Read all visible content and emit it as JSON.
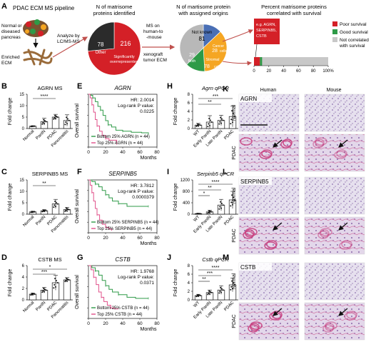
{
  "panels": {
    "A": "A",
    "B": "B",
    "C": "C",
    "D": "D",
    "E": "E",
    "F": "F",
    "G": "G",
    "H": "H",
    "I": "I",
    "J": "J",
    "K": "K",
    "L": "L",
    "M": "M"
  },
  "pipeline": {
    "title": "PDAC ECM MS pipeline",
    "tissue_line1": "Normal or",
    "tissue_line2": "diseased",
    "tissue_line3": "pancreas",
    "ecm_line1": "Enriched",
    "ecm_line2": "ECM",
    "analyze_line1": "Analyze by",
    "analyze_line2": "LC/MS-MS",
    "ms_line1": "MS on",
    "ms_line2": "human-to",
    "ms_line3": "-mouse",
    "ms_line4": "xenograft",
    "ms_line5": "tumor ECM"
  },
  "pie1": {
    "title_line1": "N of matrisome",
    "title_line2": "proteins identified",
    "other_value": "78",
    "other_label": "Other",
    "sig_value": "216",
    "sig_label1": "Significantly",
    "sig_label2": "overrepresented",
    "colors": {
      "other": "#2b2b2b",
      "sig": "#d42027"
    }
  },
  "pie2": {
    "title_line1": "N of martisome protein",
    "title_line2": "with assigned origins",
    "notknown_label": "Not known",
    "notknown_value": "81",
    "cancer_label1": "Cancer",
    "cancer_value": "28",
    "cancer_label2": "cells",
    "both_value": "29",
    "both_label": "Both",
    "stromal_label": "Stromal",
    "stromal_value": "78",
    "stromal_label2": "cells",
    "colors": {
      "notknown": "#b8b8b8",
      "cancer": "#4a6fb5",
      "both": "#2e9a47",
      "stromal": "#f5a623"
    }
  },
  "surv_bar": {
    "title_line1": "Percent matrisome proteins",
    "title_line2": "correlated with survival",
    "box_line1": "e.g. AGRN,",
    "box_line2": "SERPINB5,",
    "box_line3": "CSTB",
    "ticks": [
      "0",
      "20",
      "40",
      "60",
      "80",
      "100%"
    ],
    "poor_pct": 8,
    "good_pct": 3,
    "legend": {
      "poor": "Poor survival",
      "good": "Good survival",
      "not_line1": "Not correlated",
      "not_line2": "with survival"
    },
    "colors": {
      "poor": "#d42027",
      "good": "#2e9a47",
      "not": "#c8c8c8"
    }
  },
  "ms_bars": [
    {
      "panel": "B",
      "title": "AGRN MS",
      "ylabel": "Fold change",
      "ticks": [
        "0",
        "5",
        "10",
        "15"
      ],
      "ymax": 15,
      "categories": [
        "Normal",
        "PanIN",
        "PDAC",
        "Pancreatitis"
      ],
      "values": [
        1,
        3,
        5,
        3.5
      ],
      "errors": [
        0.2,
        1.5,
        1.2,
        2.5
      ],
      "sig": "****"
    },
    {
      "panel": "C",
      "title": "SERPINB5 MS",
      "ylabel": "Fold change",
      "ticks": [
        "0",
        "5",
        "10",
        "15"
      ],
      "ymax": 15,
      "categories": [
        "Normal",
        "PanIN",
        "PDAC",
        "Pancreatitis"
      ],
      "values": [
        1,
        1.5,
        4.5,
        2
      ],
      "errors": [
        0.3,
        0.5,
        2,
        1
      ],
      "sig": "**"
    },
    {
      "panel": "D",
      "title": "CSTB MS",
      "ylabel": "Fold change",
      "ticks": [
        "0",
        "2",
        "4",
        "6"
      ],
      "ymax": 6,
      "categories": [
        "Normal",
        "PanIN",
        "PDAC",
        "Pancreatitis"
      ],
      "values": [
        1,
        1.7,
        3,
        3.5
      ],
      "errors": [
        0.2,
        0.5,
        1.3,
        0.4
      ],
      "sig1": "***",
      "sig2": "*"
    }
  ],
  "km": [
    {
      "panel": "E",
      "gene": "AGRN",
      "hr": "HR: 2.0014",
      "logrank": "Log-rank P value:",
      "p": "0.0225",
      "legend_bottom": "Bottom 25% AGRN (n = 44)",
      "legend_top": "Top 25% AGRN (n = 44)",
      "ylabel": "Overall survival",
      "xlabel": "Months",
      "xticks": [
        "0",
        "20",
        "40",
        "60",
        "80"
      ],
      "yticks": [
        "0.0",
        "0.2",
        "0.4",
        "0.6",
        "0.8",
        "1.0"
      ],
      "bottom": [
        [
          0,
          1
        ],
        [
          3,
          0.98
        ],
        [
          5,
          0.93
        ],
        [
          8,
          0.86
        ],
        [
          11,
          0.77
        ],
        [
          14,
          0.7
        ],
        [
          17,
          0.6
        ],
        [
          20,
          0.5
        ],
        [
          23,
          0.42
        ],
        [
          27,
          0.38
        ],
        [
          32,
          0.32
        ],
        [
          40,
          0.3
        ],
        [
          50,
          0.28
        ],
        [
          62,
          0.27
        ],
        [
          70,
          0.25
        ]
      ],
      "top": [
        [
          0,
          1
        ],
        [
          2,
          0.93
        ],
        [
          4,
          0.8
        ],
        [
          6,
          0.66
        ],
        [
          8,
          0.52
        ],
        [
          10,
          0.4
        ],
        [
          13,
          0.3
        ],
        [
          16,
          0.22
        ],
        [
          20,
          0.16
        ],
        [
          24,
          0.13
        ],
        [
          28,
          0.13
        ],
        [
          33,
          0.06
        ]
      ]
    },
    {
      "panel": "F",
      "gene": "SERPINB5",
      "hr": "HR: 3.7812",
      "logrank": "Log-rank P value:",
      "p": "0.0000379",
      "legend_bottom": "Bottom 25% SERPINB5 (n = 44)",
      "legend_top": "Top 25% SERPINB5 (n = 44)",
      "ylabel": "Overall survival",
      "xlabel": "Months",
      "xticks": [
        "0",
        "20",
        "40",
        "60",
        "80"
      ],
      "yticks": [
        "0.0",
        "0.2",
        "0.4",
        "0.6",
        "0.8",
        "1.0"
      ],
      "bottom": [
        [
          0,
          1
        ],
        [
          4,
          0.97
        ],
        [
          8,
          0.92
        ],
        [
          12,
          0.87
        ],
        [
          16,
          0.8
        ],
        [
          20,
          0.72
        ],
        [
          24,
          0.66
        ],
        [
          28,
          0.6
        ],
        [
          35,
          0.55
        ],
        [
          45,
          0.5
        ],
        [
          55,
          0.5
        ],
        [
          70,
          0.5
        ]
      ],
      "top": [
        [
          0,
          1
        ],
        [
          2,
          0.9
        ],
        [
          4,
          0.76
        ],
        [
          6,
          0.6
        ],
        [
          8,
          0.46
        ],
        [
          10,
          0.34
        ],
        [
          13,
          0.24
        ],
        [
          16,
          0.16
        ],
        [
          20,
          0.1
        ],
        [
          24,
          0.07
        ],
        [
          27,
          0.04
        ]
      ]
    },
    {
      "panel": "G",
      "gene": "CSTB",
      "hr": "HR: 1.9768",
      "logrank": "Log-rank P value:",
      "p": "0.0371",
      "legend_bottom": "Bottom 25% CSTB (n = 44)",
      "legend_top": "Top 25% CSTB (n = 44)",
      "ylabel": "Overall survival",
      "xlabel": "Months",
      "xticks": [
        "0",
        "20",
        "40",
        "60",
        "80"
      ],
      "yticks": [
        "0.0",
        "0.2",
        "0.4",
        "0.6",
        "0.8",
        "1.0"
      ],
      "bottom": [
        [
          0,
          1
        ],
        [
          4,
          0.96
        ],
        [
          8,
          0.9
        ],
        [
          12,
          0.82
        ],
        [
          16,
          0.72
        ],
        [
          20,
          0.62
        ],
        [
          24,
          0.55
        ],
        [
          28,
          0.5
        ],
        [
          35,
          0.45
        ],
        [
          45,
          0.4
        ],
        [
          55,
          0.38
        ],
        [
          70,
          0.38
        ]
      ],
      "top": [
        [
          0,
          1
        ],
        [
          3,
          0.92
        ],
        [
          6,
          0.78
        ],
        [
          9,
          0.64
        ],
        [
          12,
          0.5
        ],
        [
          15,
          0.4
        ],
        [
          18,
          0.32
        ],
        [
          22,
          0.25
        ],
        [
          26,
          0.2
        ],
        [
          30,
          0.18
        ],
        [
          35,
          0.18
        ]
      ]
    }
  ],
  "qpcr": [
    {
      "panel": "H",
      "title": "Agrn qPCR",
      "ylabel": "Fold change",
      "ticks": [
        "0",
        "2",
        "4",
        "6",
        "8"
      ],
      "ymax": 8,
      "categories": [
        "WT",
        "Early PanIN",
        "Late PanIN",
        "PDAC"
      ],
      "values": [
        0.8,
        1.5,
        1.9,
        2.8
      ],
      "errors": [
        0.4,
        1.5,
        1.2,
        2.4
      ],
      "sig1": "**",
      "sig2": "***"
    },
    {
      "panel": "I",
      "title": "Serpinb5 qPCR",
      "ylabel": "Fold change",
      "ticks": [
        "0",
        "400",
        "800",
        "1200"
      ],
      "ymax": 1200,
      "categories": [
        "WT",
        "Early PanIN",
        "Late PanIN",
        "PDAC"
      ],
      "values": [
        20,
        80,
        320,
        500
      ],
      "errors": [
        10,
        60,
        200,
        300
      ],
      "sig1": "*",
      "sig2": "**",
      "sig3": "****"
    },
    {
      "panel": "J",
      "title": "Cstb qPCR",
      "ylabel": "Fold change",
      "ticks": [
        "0",
        "2",
        "4",
        "6",
        "8"
      ],
      "ymax": 8,
      "categories": [
        "WT",
        "Early PanIN",
        "Late PanIN",
        "PDAC"
      ],
      "values": [
        1,
        1.7,
        2.3,
        3.5
      ],
      "errors": [
        0.3,
        0.6,
        1,
        1.6
      ],
      "sig1": "**",
      "sig2": "***",
      "sig3": "****"
    }
  ],
  "ihc": {
    "col_human": "Human",
    "col_mouse": "Mouse",
    "row_normal": "Normal",
    "row_pdac": "PDAC",
    "genes": [
      "AGRN",
      "SERPINB5",
      "CSTB"
    ],
    "colors": {
      "normal_bg": "#e2dcec",
      "pdac_bg": "#dccfe3",
      "stain": "#c8407f",
      "tissue": "#8d6fae"
    }
  }
}
